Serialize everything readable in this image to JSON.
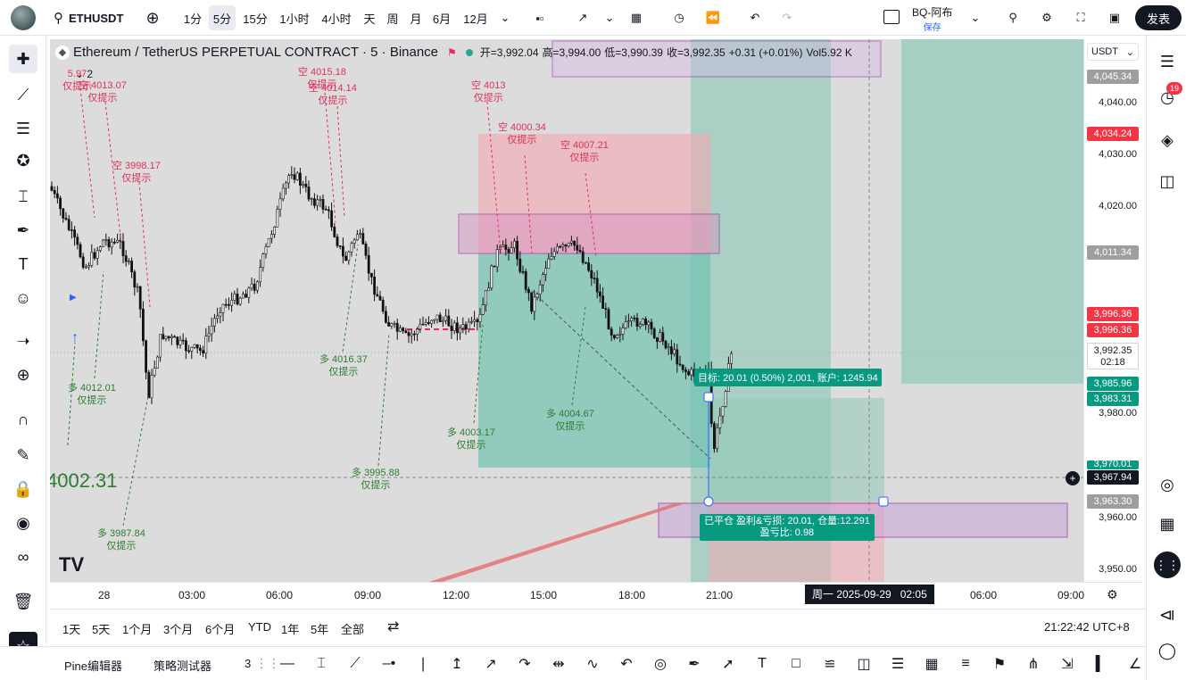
{
  "toolbar": {
    "symbol": "ETHUSDT",
    "intervals": [
      "1分",
      "5分",
      "15分",
      "1小时",
      "4小时",
      "天",
      "周",
      "月",
      "6月",
      "12月"
    ],
    "active_interval": "5分",
    "account_name": "BQ-阿布",
    "save_label": "保存",
    "publish_label": "发表"
  },
  "legend": {
    "title": "Ethereum / TetherUS PERPETUAL CONTRACT · 5 · Binance",
    "open": "开=3,992.04",
    "high": "高=3,994.00",
    "low": "低=3,990.39",
    "close": "收=3,992.35",
    "change": "+0.31 (+0.01%)",
    "vol": "Vol5.92 K",
    "collapse": "2"
  },
  "price_axis": {
    "currency": "USDT",
    "labels": [
      "4,040.00",
      "4,030.00",
      "4,020.00",
      "4,000.00",
      "3,980.00",
      "3,960.00",
      "3,950.00"
    ],
    "tags": {
      "t1": "4,045.34",
      "t2": "4,034.24",
      "t3": "4,011.34",
      "t4": "3,996.36",
      "t5": "3,996.36",
      "t6": "3,992.35",
      "t6b": "02:18",
      "t7": "3,985.96",
      "t8": "3,983.31",
      "t9": "3,970.01",
      "t10": "3,967.94",
      "t11": "3,963.30"
    }
  },
  "time_axis": {
    "labels": [
      "28",
      "03:00",
      "06:00",
      "09:00",
      "12:00",
      "15:00",
      "18:00",
      "21:00",
      "06:00",
      "09:00"
    ],
    "crosshair": "周一 2025-09-29   02:05"
  },
  "chart": {
    "big_price": "4002.31",
    "target_label": "目标: 20.01 (0.50%) 2,001, 账户: 1245.94",
    "closed_line1": "已平仓 盈利&亏损: 20.01, 仓量:12.291",
    "closed_line2": "盈亏比: 0.98",
    "annotations": [
      {
        "text": "空 4015.18",
        "sub": "仅提示",
        "color": "r"
      },
      {
        "text": "空 4014.14",
        "sub": "仅提示",
        "color": "r"
      },
      {
        "text": "空 4013.07",
        "sub": "仅提示",
        "color": "r"
      },
      {
        "text": "空 4013",
        "sub": "仅提示",
        "color": "r"
      },
      {
        "text": "空 3998.17",
        "sub": "仅提示",
        "color": "r"
      },
      {
        "text": "空 4000.34",
        "sub": "仅提示",
        "color": "r"
      },
      {
        "text": "空 4007.21",
        "sub": "仅提示",
        "color": "r"
      },
      {
        "text": "多 4016.37",
        "sub": "仅提示",
        "color": "g"
      },
      {
        "text": "多 4012.01",
        "sub": "仅提示",
        "color": "g"
      },
      {
        "text": "多 4004.67",
        "sub": "仅提示",
        "color": "g"
      },
      {
        "text": "多 4003.17",
        "sub": "仅提示",
        "color": "g"
      },
      {
        "text": "多 3995.88",
        "sub": "仅提示",
        "color": "g"
      },
      {
        "text": "多 3987.84",
        "sub": "仅提示",
        "color": "g"
      },
      {
        "text": "5.97",
        "sub": "仅提示",
        "color": "r"
      }
    ]
  },
  "bottom": {
    "periods": [
      "1天",
      "5天",
      "1个月",
      "3个月",
      "6个月",
      "YTD",
      "1年",
      "5年",
      "全部"
    ],
    "clock": "21:22:42 UTC+8"
  },
  "drawbar": {
    "pine": "Pine编辑器",
    "strategy": "策略测试器",
    "more": "3"
  },
  "notifications": "19"
}
